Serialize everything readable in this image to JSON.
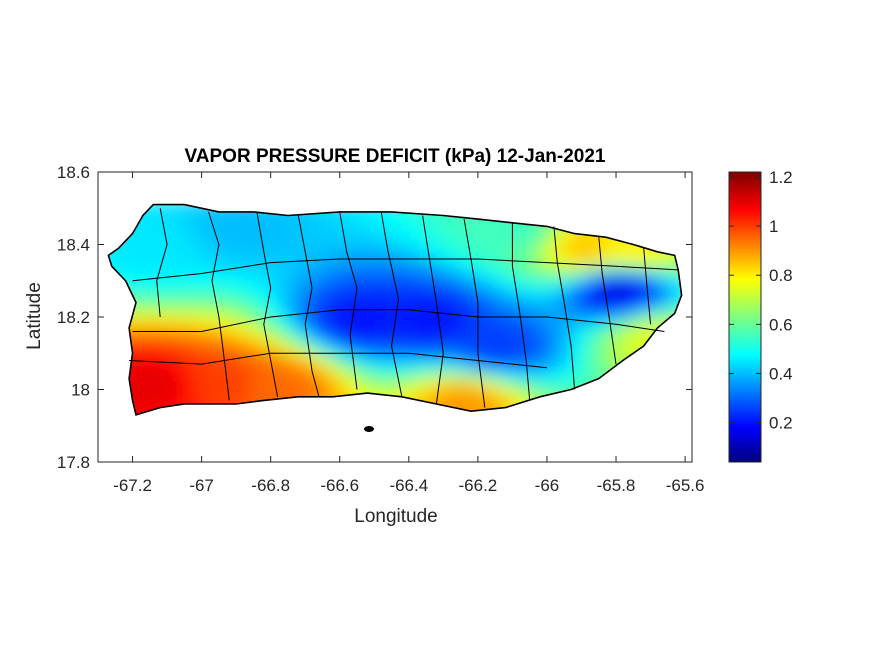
{
  "chart_data": {
    "type": "heatmap",
    "title": "VAPOR PRESSURE DEFICIT (kPa) 12-Jan-2021",
    "xlabel": "Longitude",
    "ylabel": "Latitude",
    "xlim": [
      -67.3,
      -65.58
    ],
    "ylim": [
      17.8,
      18.6
    ],
    "x_ticks": [
      "-67.2",
      "-67",
      "-66.8",
      "-66.6",
      "-66.4",
      "-66.2",
      "-66",
      "-65.8",
      "-65.6"
    ],
    "x_tick_values": [
      -67.2,
      -67.0,
      -66.8,
      -66.6,
      -66.4,
      -66.2,
      -66.0,
      -65.8,
      -65.6
    ],
    "y_ticks": [
      "18.6",
      "18.4",
      "18.2",
      "18",
      "17.8"
    ],
    "y_tick_values": [
      18.6,
      18.4,
      18.2,
      18.0,
      17.8
    ],
    "grid": false,
    "colormap": "jet",
    "colorbar": {
      "range": [
        0.04,
        1.22
      ],
      "ticks": [
        "1.2",
        "1",
        "0.8",
        "0.6",
        "0.4",
        "0.2"
      ],
      "tick_values": [
        1.2,
        1.0,
        0.8,
        0.6,
        0.4,
        0.2
      ],
      "colors": [
        "#00007f",
        "#0000ff",
        "#007fff",
        "#00ffff",
        "#7fff7f",
        "#ffff00",
        "#ff7f00",
        "#ff0000",
        "#7f0000"
      ]
    },
    "field_description_points": [
      {
        "lon": -67.15,
        "lat": 18.02,
        "value": 1.1
      },
      {
        "lon": -66.95,
        "lat": 18.03,
        "value": 1.0
      },
      {
        "lon": -66.78,
        "lat": 18.02,
        "value": 0.95
      },
      {
        "lon": -66.55,
        "lat": 18.2,
        "value": 0.2
      },
      {
        "lon": -66.35,
        "lat": 18.2,
        "value": 0.2
      },
      {
        "lon": -66.15,
        "lat": 18.13,
        "value": 0.25
      },
      {
        "lon": -65.8,
        "lat": 18.28,
        "value": 0.15
      },
      {
        "lon": -66.25,
        "lat": 17.97,
        "value": 0.9
      },
      {
        "lon": -66.1,
        "lat": 18.45,
        "value": 0.55
      },
      {
        "lon": -65.9,
        "lat": 18.4,
        "value": 0.85
      },
      {
        "lon": -65.75,
        "lat": 18.4,
        "value": 0.8
      },
      {
        "lon": -67.15,
        "lat": 18.4,
        "value": 0.45
      },
      {
        "lon": -66.9,
        "lat": 18.45,
        "value": 0.4
      },
      {
        "lon": -65.7,
        "lat": 18.15,
        "value": 0.75
      }
    ]
  },
  "colors": {
    "axes_box": "#262626",
    "background": "#ffffff",
    "boundary": "#000000"
  }
}
